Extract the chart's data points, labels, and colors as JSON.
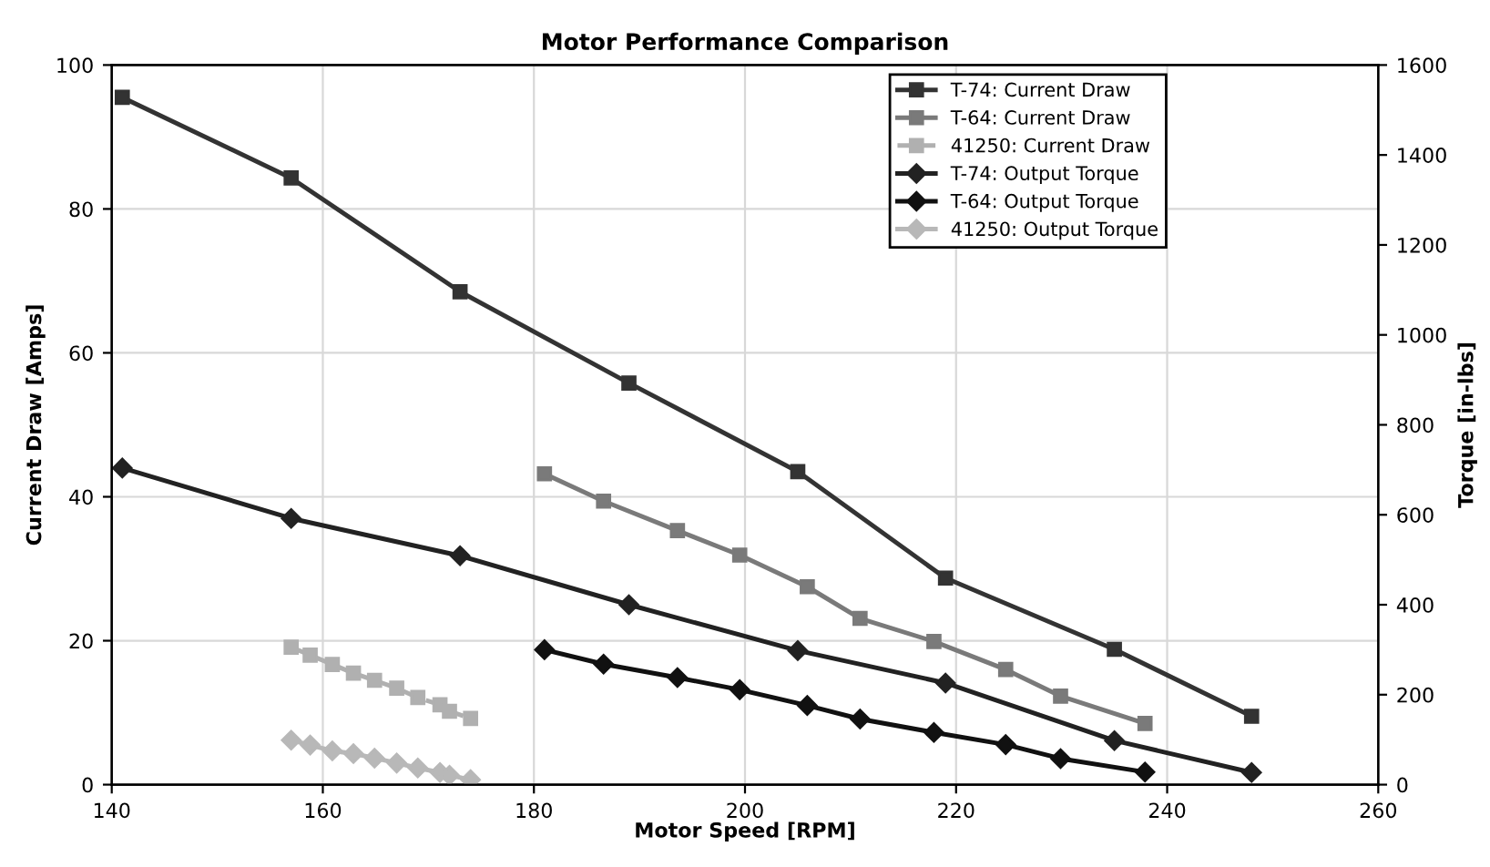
{
  "chart_data": {
    "type": "line",
    "title": "Motor Performance Comparison",
    "xlabel": "Motor Speed [RPM]",
    "ylabel": "Current Draw [Amps]",
    "y2label": "Torque [in-lbs]",
    "xlim": [
      140,
      260
    ],
    "xticks": [
      140,
      160,
      180,
      200,
      220,
      240,
      260
    ],
    "ylim": [
      0,
      100
    ],
    "yticks": [
      0,
      20,
      40,
      60,
      80,
      100
    ],
    "y2lim": [
      0,
      1600
    ],
    "y2ticks": [
      0,
      200,
      400,
      600,
      800,
      1000,
      1200,
      1400,
      1600
    ],
    "grid": true,
    "legend": "top right",
    "series": [
      {
        "name": "T-74: Current Draw",
        "color": "#333333",
        "marker": "square",
        "line_style": "solid",
        "x": [
          141,
          157,
          173,
          189,
          205,
          219,
          235,
          248
        ],
        "values": [
          95.5,
          84.3,
          68.5,
          55.8,
          43.5,
          28.7,
          18.8,
          9.5
        ]
      },
      {
        "name": "T-64: Current Draw",
        "color": "#7a7a7a",
        "marker": "square",
        "line_style": "solid",
        "x": [
          181,
          186.6,
          193.6,
          199.5,
          205.9,
          210.9,
          217.9,
          224.7,
          229.9,
          237.9
        ],
        "values": [
          43.2,
          39.4,
          35.3,
          31.9,
          27.5,
          23.1,
          19.9,
          16.0,
          12.3,
          8.5
        ]
      },
      {
        "name": "41250: Current Draw",
        "color": "#b0b0b0",
        "marker": "square",
        "line_style": "dashed",
        "x": [
          157,
          158.8,
          160.9,
          162.9,
          164.9,
          167,
          169,
          171.1,
          172,
          174
        ],
        "values": [
          19.1,
          18.0,
          16.7,
          15.5,
          14.5,
          13.4,
          12.1,
          11.1,
          10.2,
          9.2
        ]
      },
      {
        "name": "T-74: Output Torque",
        "color": "#222222",
        "marker": "diamond",
        "line_style": "solid",
        "axis": "y2",
        "x": [
          141,
          157,
          173,
          189,
          205,
          219,
          235,
          248
        ],
        "values": [
          704,
          592,
          509,
          400,
          298,
          226,
          98,
          27
        ]
      },
      {
        "name": "T-64: Output Torque",
        "color": "#111111",
        "marker": "diamond",
        "line_style": "solid",
        "axis": "y2",
        "x": [
          181,
          186.6,
          193.6,
          199.5,
          205.9,
          210.9,
          217.9,
          224.7,
          229.9,
          237.9
        ],
        "values": [
          300,
          268,
          238,
          211,
          176,
          146,
          116,
          89,
          58,
          28
        ]
      },
      {
        "name": "41250: Output Torque",
        "color": "#b8b8b8",
        "marker": "diamond",
        "line_style": "solid",
        "axis": "y2",
        "x": [
          157,
          158.8,
          160.9,
          162.9,
          164.9,
          167,
          169,
          171.1,
          172,
          174
        ],
        "values": [
          99,
          88,
          75,
          69,
          59,
          48,
          37,
          27,
          21,
          11
        ]
      }
    ]
  }
}
